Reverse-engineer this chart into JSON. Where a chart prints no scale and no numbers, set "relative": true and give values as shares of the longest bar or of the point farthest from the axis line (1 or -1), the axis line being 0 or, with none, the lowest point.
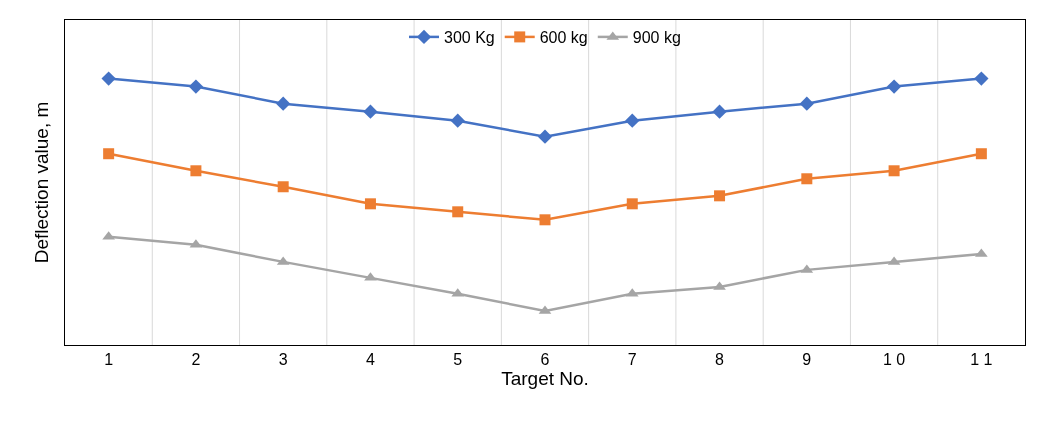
{
  "chart_data": {
    "type": "line",
    "relative": true,
    "xlabel": "Target No.",
    "ylabel": "Deflection value, m",
    "categories": [
      "1",
      "2",
      "3",
      "4",
      "5",
      "6",
      "7",
      "8",
      "9",
      "1 0",
      "1 1"
    ],
    "series": [
      {
        "name": "300 Kg",
        "color": "#4472c4",
        "marker": "diamond",
        "values": [
          1,
          0.97,
          0.906,
          0.876,
          0.842,
          0.782,
          0.842,
          0.876,
          0.906,
          0.97,
          1
        ]
      },
      {
        "name": "600 kg",
        "color": "#ed7d31",
        "marker": "square",
        "values": [
          0.718,
          0.654,
          0.594,
          0.53,
          0.5,
          0.47,
          0.53,
          0.56,
          0.624,
          0.654,
          0.718
        ]
      },
      {
        "name": "900 kg",
        "color": "#a5a5a5",
        "marker": "triangle",
        "values": [
          0.406,
          0.376,
          0.312,
          0.252,
          0.192,
          0.128,
          0.192,
          0.218,
          0.282,
          0.312,
          0.342
        ]
      }
    ],
    "grid": "x",
    "legend": "top",
    "line_style": "solid"
  }
}
